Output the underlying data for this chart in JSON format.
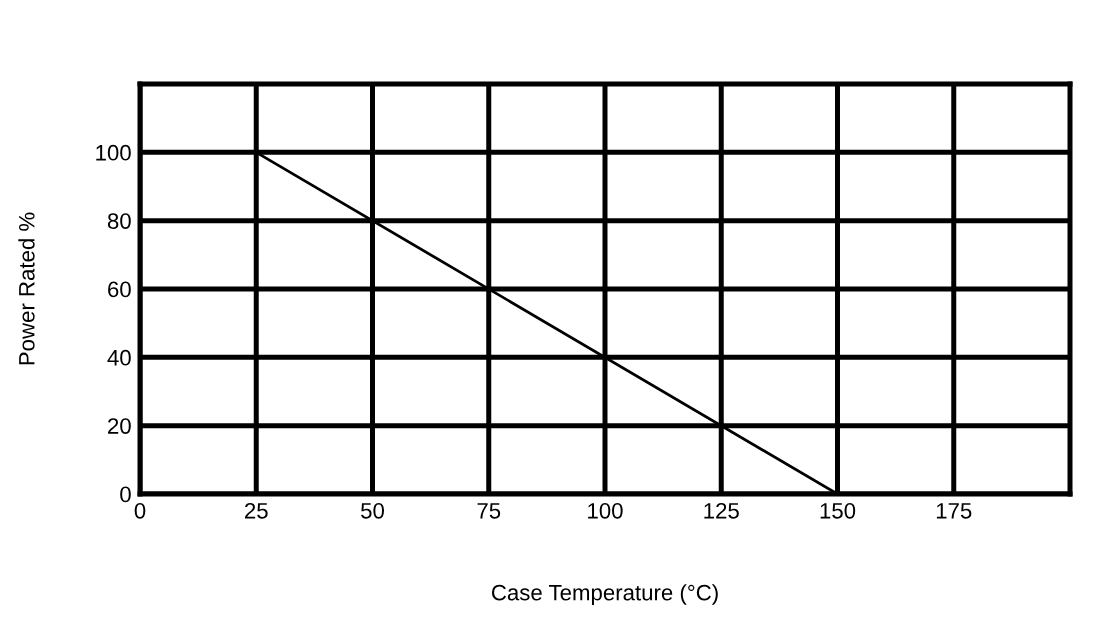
{
  "chart_data": {
    "type": "line",
    "xlabel": "Case Temperature (°C)",
    "ylabel": "Power Rated %",
    "x": [
      0,
      25,
      150
    ],
    "series": [
      {
        "color": "#000000",
        "values": [
          100,
          100,
          0
        ]
      }
    ],
    "xlim": [
      0,
      200
    ],
    "xticks": [
      0,
      25,
      50,
      75,
      100,
      125,
      150,
      175
    ],
    "ylim": [
      0,
      120
    ],
    "yticks": [
      0,
      20,
      40,
      60,
      80,
      100
    ],
    "grid": true,
    "marker": "none",
    "line_style": "solid"
  }
}
